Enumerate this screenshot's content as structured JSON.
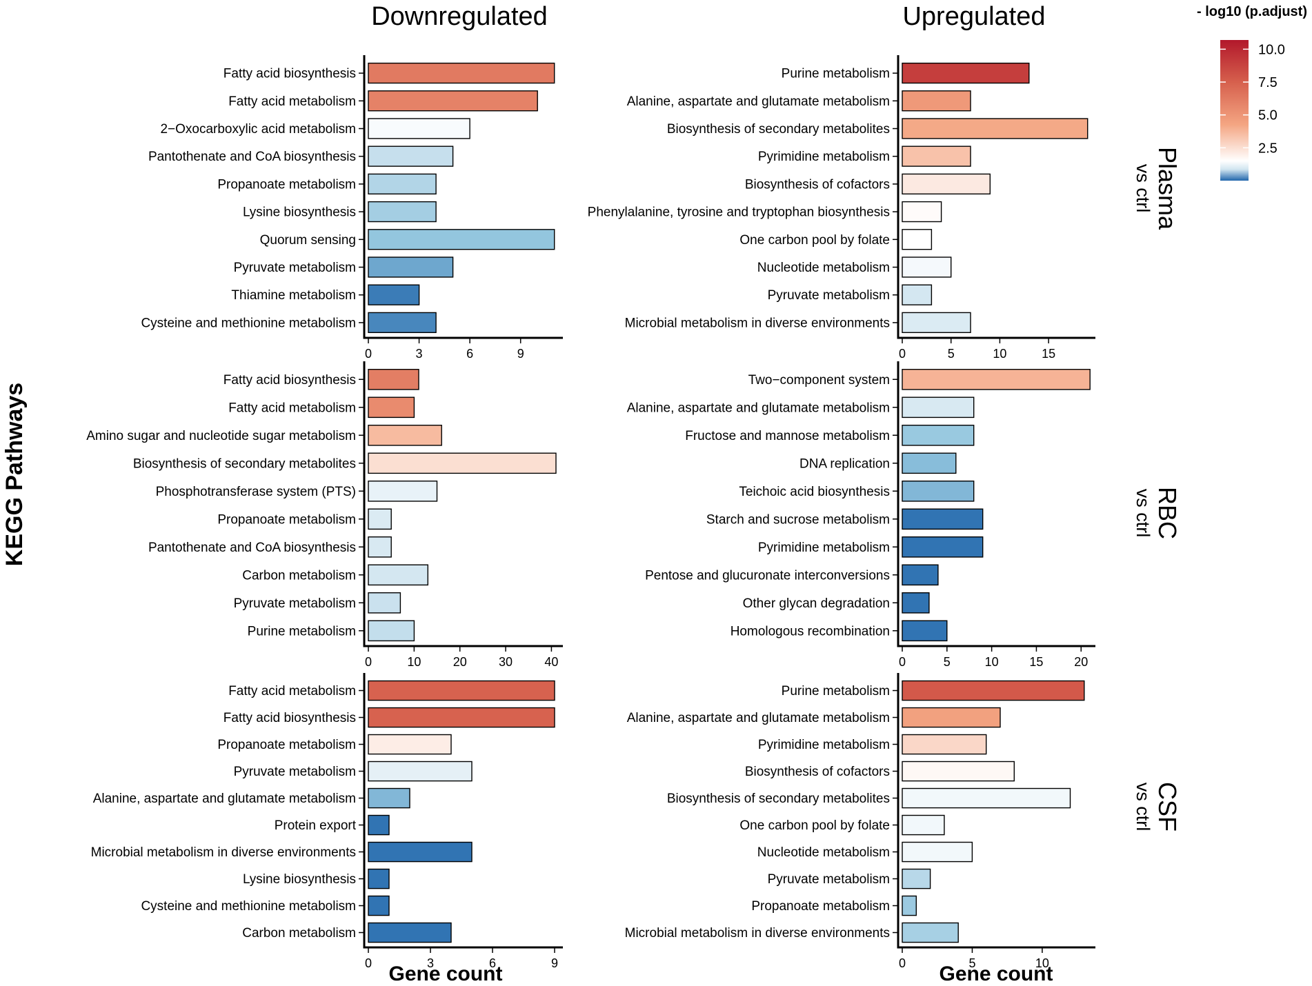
{
  "chart_data": {
    "type": "bar",
    "orientation": "horizontal",
    "columns": [
      "Downregulated",
      "Upregulated"
    ],
    "xlabel": "Gene count",
    "ylabel": "KEGG Pathways",
    "legend": {
      "title": "- log10 (p.adjust)",
      "ticks": [
        10.0,
        7.5,
        5.0,
        2.5
      ],
      "tick_labels": [
        "10.0",
        "7.5",
        "5.0",
        "2.5"
      ],
      "range": [
        0,
        10.7
      ],
      "placement": "top-right"
    },
    "colors": {
      "low": "#2166ac",
      "mid": "#ffffff",
      "high": "#b2182b"
    },
    "rows": [
      {
        "facet": "Plasma",
        "facet_sub": "vs ctrl"
      },
      {
        "facet": "RBC",
        "facet_sub": "vs ctrl"
      },
      {
        "facet": "CSF",
        "facet_sub": "vs ctrl"
      }
    ],
    "panels": [
      {
        "row": "Plasma",
        "column": "Downregulated",
        "xlim": [
          0,
          11.5
        ],
        "xticks": [
          0,
          3,
          6,
          9
        ],
        "categories": [
          "Fatty acid biosynthesis",
          "Fatty acid metabolism",
          "2−Oxocarboxylic acid metabolism",
          "Pantothenate and CoA biosynthesis",
          "Propanoate metabolism",
          "Lysine biosynthesis",
          "Quorum sensing",
          "Pyruvate metabolism",
          "Thiamine metabolism",
          "Cysteine and methionine metabolism"
        ],
        "values": [
          11,
          10,
          6,
          5,
          4,
          4,
          11,
          5,
          3,
          4
        ],
        "color_values": [
          6.2,
          5.8,
          1.4,
          0.72,
          0.58,
          0.48,
          0.36,
          0.24,
          0.08,
          0.12
        ]
      },
      {
        "row": "Plasma",
        "column": "Upregulated",
        "xlim": [
          0,
          19.8
        ],
        "xticks": [
          0,
          5,
          10,
          15
        ],
        "categories": [
          "Purine metabolism",
          "Alanine, aspartate and glutamate metabolism",
          "Biosynthesis of secondary metabolites",
          "Pyrimidine metabolism",
          "Biosynthesis of cofactors",
          "Phenylalanine, tyrosine and tryptophan biosynthesis",
          "One carbon pool by folate",
          "Nucleotide metabolism",
          "Pyruvate metabolism",
          "Microbial metabolism in diverse environments"
        ],
        "values": [
          13,
          7,
          19,
          7,
          9,
          4,
          3,
          5,
          3,
          7
        ],
        "color_values": [
          9.0,
          4.6,
          3.9,
          3.2,
          2.1,
          1.6,
          1.5,
          1.35,
          0.85,
          0.95
        ]
      },
      {
        "row": "RBC",
        "column": "Downregulated",
        "xlim": [
          0,
          42.5
        ],
        "xticks": [
          0,
          10,
          20,
          30,
          40
        ],
        "categories": [
          "Fatty acid biosynthesis",
          "Fatty acid metabolism",
          "Amino sugar and nucleotide sugar metabolism",
          "Biosynthesis of secondary metabolites",
          "Phosphotransferase system (PTS)",
          "Propanoate metabolism",
          "Pantothenate and CoA biosynthesis",
          "Carbon metabolism",
          "Pyruvate metabolism",
          "Purine metabolism"
        ],
        "values": [
          11,
          10,
          16,
          41,
          15,
          5,
          5,
          13,
          7,
          10
        ],
        "color_values": [
          6.0,
          5.3,
          3.4,
          2.4,
          1.15,
          0.95,
          0.9,
          0.85,
          0.75,
          0.7
        ]
      },
      {
        "row": "RBC",
        "column": "Upregulated",
        "xlim": [
          0,
          21.6
        ],
        "xticks": [
          0,
          5,
          10,
          15,
          20
        ],
        "categories": [
          "Two−component system",
          "Alanine, aspartate and glutamate metabolism",
          "Fructose and mannose metabolism",
          "DNA replication",
          "Teichoic acid biosynthesis",
          "Starch and sucrose metabolism",
          "Pyrimidine metabolism",
          "Pentose and glucuronate interconversions",
          "Other glycan degradation",
          "Homologous recombination"
        ],
        "values": [
          21,
          8,
          8,
          6,
          8,
          9,
          9,
          4,
          3,
          5
        ],
        "color_values": [
          3.6,
          0.9,
          0.4,
          0.32,
          0.3,
          0.05,
          0.05,
          0.05,
          0.05,
          0.05
        ]
      },
      {
        "row": "CSF",
        "column": "Downregulated",
        "xlim": [
          0,
          9.4
        ],
        "xticks": [
          0,
          3,
          6,
          9
        ],
        "categories": [
          "Fatty acid metabolism",
          "Fatty acid biosynthesis",
          "Propanoate metabolism",
          "Pyruvate metabolism",
          "Alanine, aspartate and glutamate metabolism",
          "Protein export",
          "Microbial metabolism in diverse environments",
          "Lysine biosynthesis",
          "Cysteine and methionine metabolism",
          "Carbon metabolism"
        ],
        "values": [
          9,
          9,
          4,
          5,
          2,
          1,
          5,
          1,
          1,
          4
        ],
        "color_values": [
          7.4,
          7.4,
          2.0,
          1.1,
          0.3,
          0.05,
          0.05,
          0.05,
          0.05,
          0.05
        ]
      },
      {
        "row": "CSF",
        "column": "Upregulated",
        "xlim": [
          0,
          13.8
        ],
        "xticks": [
          0,
          5,
          10
        ],
        "categories": [
          "Purine metabolism",
          "Alanine, aspartate and glutamate metabolism",
          "Pyrimidine metabolism",
          "Biosynthesis of cofactors",
          "Biosynthesis of secondary metabolites",
          "One carbon pool by folate",
          "Nucleotide metabolism",
          "Pyruvate metabolism",
          "Propanoate metabolism",
          "Microbial metabolism in diverse environments"
        ],
        "values": [
          13,
          7,
          6,
          8,
          12,
          3,
          5,
          2,
          1,
          4
        ],
        "color_values": [
          7.8,
          4.2,
          2.6,
          1.7,
          1.3,
          1.3,
          1.3,
          0.62,
          0.42,
          0.5
        ]
      }
    ]
  }
}
